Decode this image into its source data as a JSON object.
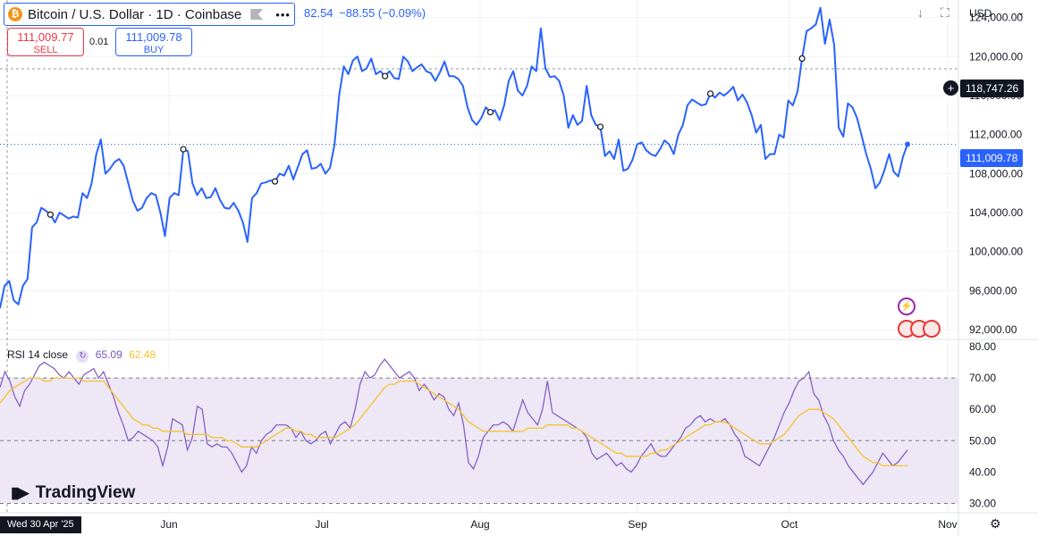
{
  "header": {
    "symbol_title": "Bitcoin / U.S. Dollar · 1D · Coinbase",
    "ohlc_partial": "82.54",
    "change": "−88.55 (−0.09%)",
    "currency": "USD"
  },
  "trade": {
    "sell_price": "111,009.77",
    "sell_label": "SELL",
    "spread": "0.01",
    "buy_price": "111,009.78",
    "buy_label": "BUY"
  },
  "price_tags": {
    "crosshair": "118,747.26",
    "last": "111,009.78"
  },
  "rsi": {
    "label": "RSI 14 close",
    "rsi_value": "65.09",
    "ma_value": "62.48"
  },
  "branding": {
    "logo_text": "TradingView"
  },
  "date_label": "Wed 30 Apr '25",
  "colors": {
    "price_line": "#2962ff",
    "rsi_line": "#7e57c2",
    "rsi_ma": "#f7c32e",
    "sell": "#f23645",
    "buy": "#2962ff",
    "rsi_band": "#ede7f6"
  },
  "icons": [
    "bitcoin-icon",
    "flag-icon",
    "more-icon",
    "download-icon",
    "fullscreen-icon",
    "crosshair-plus-icon",
    "refresh-icon",
    "settings-icon",
    "lightning-icon",
    "us-flag-icon"
  ],
  "chart_data": [
    {
      "type": "line",
      "series": [
        {
          "values": [
            94200,
            96500,
            97000,
            95000,
            94600,
            96500,
            97200,
            102500,
            103000,
            104500,
            104200,
            103800,
            103000,
            104000,
            103700,
            103400,
            103600,
            103500,
            106000,
            105500,
            107000,
            110000,
            111500,
            108000,
            108500,
            109200,
            109500,
            108800,
            107000,
            105200,
            104200,
            104500,
            105500,
            106000,
            105800,
            104000,
            101600,
            105500,
            106000,
            105800,
            110500,
            110300,
            107000,
            105800,
            106500,
            105500,
            105600,
            106500,
            105300,
            104500,
            104400,
            105000,
            104200,
            103000,
            101000,
            105500,
            106000,
            107000,
            107100,
            107300,
            107200,
            108000,
            107800,
            108800,
            107400,
            108700,
            110000,
            110400,
            108500,
            108600,
            109000,
            108000,
            108600,
            111000,
            116000,
            119000,
            118200,
            119600,
            120000,
            118500,
            118800,
            119800,
            118200,
            118500,
            118000,
            118500,
            117800,
            117700,
            120000,
            119500,
            118500,
            118900,
            119200,
            118500,
            118300,
            117500,
            118400,
            119500,
            118000,
            118000,
            117700,
            117000,
            114800,
            113500,
            113000,
            113700,
            114800,
            114300,
            114500,
            113500,
            115000,
            117500,
            118500,
            116500,
            116000,
            117000,
            119000,
            118500,
            122900,
            118800,
            117900,
            118000,
            117500,
            116000,
            112700,
            114000,
            113000,
            113400,
            117000,
            114000,
            113000,
            112800,
            109800,
            110300,
            109500,
            111500,
            108300,
            108500,
            109400,
            111000,
            111200,
            110400,
            110000,
            109800,
            110500,
            111400,
            111000,
            110000,
            112000,
            113000,
            115000,
            115600,
            115300,
            115000,
            115100,
            116200,
            115800,
            116300,
            116000,
            116400,
            116900,
            115500,
            116100,
            115300,
            114000,
            112200,
            113000,
            109500,
            110000,
            110000,
            112000,
            111700,
            115500,
            115000,
            116400,
            119800,
            122600,
            122900,
            123300,
            125000,
            121300,
            123800,
            121200,
            112700,
            111800,
            115200,
            114800,
            113700,
            111900,
            110000,
            108500,
            106500,
            107100,
            108400,
            110000,
            108200,
            107700,
            109700,
            111009.78
          ]
        }
      ],
      "yaxis_ticks": [
        "92,000.00",
        "96,000.00",
        "100,000.00",
        "104,000.00",
        "108,000.00",
        "112,000.00",
        "116,000.00",
        "120,000.00",
        "124,000.00"
      ],
      "ylim": [
        91000,
        125800
      ]
    },
    {
      "type": "line",
      "series": [
        {
          "values": [
            67,
            72,
            69,
            64,
            61,
            66,
            68,
            71,
            74,
            75,
            74,
            73,
            71,
            70,
            72,
            70,
            68,
            71,
            72,
            73,
            70,
            72,
            68,
            64,
            59,
            55,
            50,
            51,
            53,
            52,
            51,
            50,
            48,
            42,
            48,
            57,
            56,
            55,
            47,
            51,
            61,
            60,
            49,
            48,
            49,
            48,
            48,
            46,
            43,
            40,
            42,
            48,
            46,
            50,
            52,
            53,
            55,
            55,
            55,
            54,
            51,
            53,
            50,
            49,
            50,
            52,
            53,
            49,
            52,
            55,
            56,
            54,
            60,
            68,
            72,
            70,
            71,
            74,
            76,
            74,
            72,
            70,
            71,
            72,
            70,
            66,
            68,
            66,
            63,
            65,
            64,
            60,
            58,
            62,
            55,
            43,
            41,
            45,
            51,
            53,
            55,
            55,
            56,
            55,
            53,
            58,
            63,
            59,
            57,
            55,
            60,
            69,
            59,
            58,
            57,
            56,
            55,
            54,
            53,
            51,
            46,
            44,
            45,
            46,
            44,
            42,
            43,
            41,
            40,
            42,
            45,
            47,
            49,
            46,
            45,
            45,
            47,
            49,
            51,
            54,
            55,
            57,
            58,
            56,
            57,
            56,
            56,
            57,
            55,
            52,
            50,
            45,
            44,
            43,
            42,
            45,
            48,
            51,
            55,
            59,
            62,
            66,
            69,
            70,
            72,
            65,
            63,
            58,
            55,
            50,
            47,
            45,
            42,
            40,
            38,
            36,
            38,
            40,
            43,
            46,
            44,
            42,
            43,
            45,
            47
          ]
        },
        {
          "values": [
            62,
            64,
            66,
            67,
            68,
            69,
            70,
            70,
            70,
            69,
            69,
            70,
            70,
            70,
            70,
            70,
            70,
            69,
            69,
            69,
            69,
            69,
            67,
            65,
            63,
            61,
            59,
            57,
            56,
            55,
            55,
            54,
            54,
            53,
            53,
            53,
            53,
            53,
            52,
            52,
            52,
            52,
            52,
            51,
            51,
            51,
            50,
            50,
            49,
            48,
            48,
            48,
            48,
            49,
            50,
            51,
            52,
            53,
            54,
            54,
            53,
            53,
            52,
            52,
            51,
            51,
            51,
            51,
            51,
            52,
            53,
            54,
            55,
            57,
            59,
            61,
            63,
            65,
            67,
            68,
            68,
            69,
            69,
            69,
            69,
            68,
            67,
            66,
            65,
            64,
            63,
            62,
            61,
            60,
            58,
            56,
            55,
            54,
            53,
            53,
            53,
            53,
            53,
            53,
            53,
            53,
            53,
            54,
            54,
            54,
            54,
            55,
            55,
            55,
            55,
            55,
            54,
            54,
            53,
            52,
            51,
            50,
            49,
            48,
            47,
            46,
            46,
            45,
            45,
            45,
            45,
            45,
            46,
            46,
            47,
            47,
            48,
            49,
            50,
            51,
            52,
            53,
            54,
            55,
            55,
            56,
            56,
            56,
            55,
            54,
            53,
            52,
            51,
            50,
            49,
            49,
            49,
            50,
            51,
            52,
            54,
            56,
            58,
            59,
            60,
            60,
            60,
            59,
            58,
            57,
            55,
            53,
            51,
            49,
            47,
            45,
            44,
            43,
            43,
            42,
            42,
            42,
            42,
            42,
            42
          ]
        }
      ],
      "yaxis_ticks": [
        "30.00",
        "40.00",
        "50.00",
        "60.00",
        "70.00",
        "80.00"
      ],
      "ylim": [
        27,
        82
      ],
      "bands": [
        30,
        50,
        70
      ]
    }
  ],
  "xaxis_ticks": [
    "Jun",
    "Jul",
    "Aug",
    "Sep",
    "Oct",
    "Nov"
  ]
}
